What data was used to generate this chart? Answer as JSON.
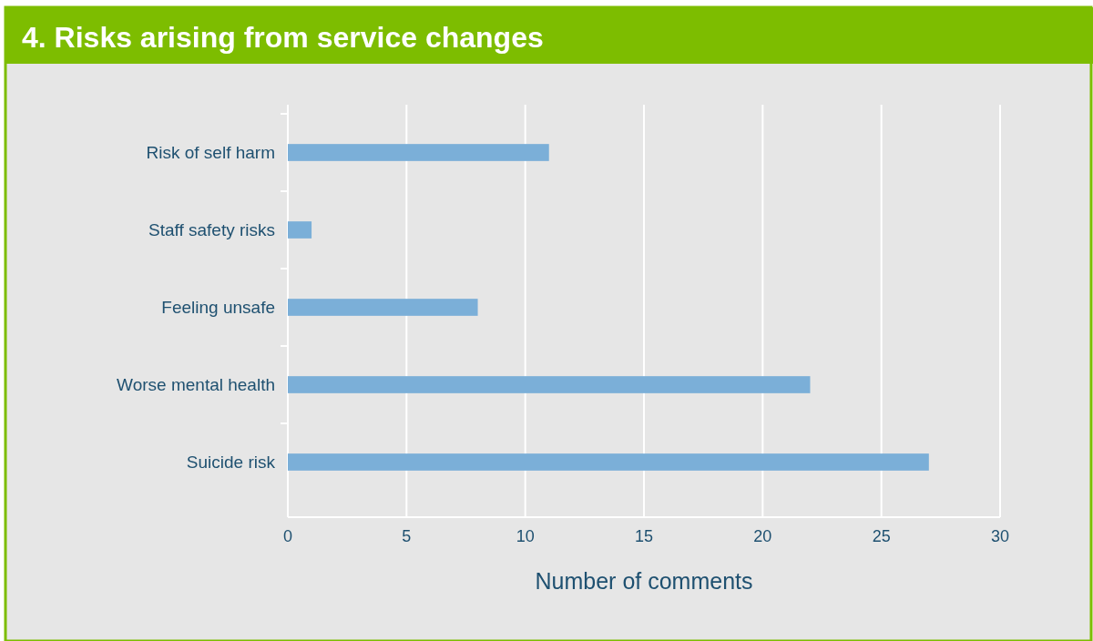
{
  "chart_data": {
    "type": "bar",
    "orientation": "horizontal",
    "title": "4. Risks arising from service changes",
    "xlabel": "Number of comments",
    "categories": [
      "Risk of self harm",
      "Staff safety risks",
      "Feeling unsafe",
      "Worse mental health",
      "Suicide risk"
    ],
    "values": [
      11,
      1,
      8,
      22,
      27
    ],
    "color": "#7bafd8",
    "xlim": [
      0,
      30
    ],
    "xticks": [
      0,
      5,
      10,
      15,
      20,
      25,
      30
    ],
    "grid": "x"
  }
}
